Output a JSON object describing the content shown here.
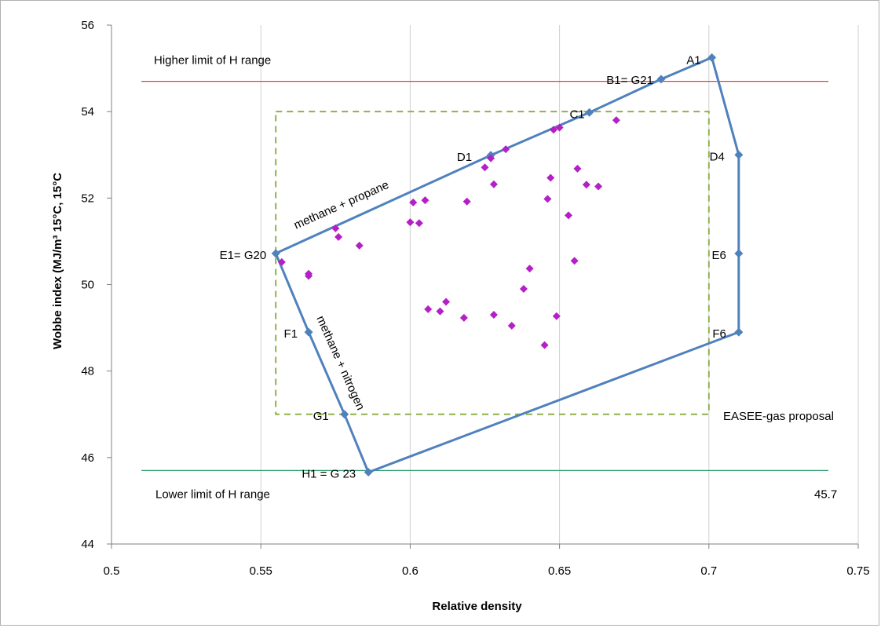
{
  "chart_data": {
    "type": "scatter",
    "title": "",
    "xlabel": "Relative density",
    "ylabel": "Wobbe index (MJ/m³ 15°C, 15°C",
    "xlim": [
      0.5,
      0.75
    ],
    "ylim": [
      44,
      56
    ],
    "x_ticks": [
      "0.5",
      "0.55",
      "0.6",
      "0.65",
      "0.7",
      "0.75"
    ],
    "y_ticks": [
      "44",
      "46",
      "48",
      "50",
      "52",
      "54",
      "56"
    ],
    "grid": "vertical",
    "colors": {
      "polygon": "#4f81bd",
      "points": "#b41fc7",
      "upper_limit": "#e0403a",
      "lower_limit": "#2e9e6e",
      "easee_box": "#8fb04a"
    },
    "reference_lines": [
      {
        "label": "Higher limit of H range",
        "y": 54.7,
        "x_range": [
          0.51,
          0.74
        ]
      },
      {
        "label": "Lower limit of H range",
        "value_label": "45.7",
        "y": 45.7,
        "x_range": [
          0.51,
          0.74
        ]
      }
    ],
    "easee_box": {
      "label": "EASEE-gas proposal",
      "x_range": [
        0.555,
        0.7
      ],
      "y_range": [
        47,
        54
      ]
    },
    "polygon_vertices": [
      {
        "label": "A1",
        "x": 0.701,
        "y": 55.25
      },
      {
        "label": "B1= G21",
        "x": 0.684,
        "y": 54.75
      },
      {
        "label": "C1",
        "x": 0.66,
        "y": 53.98
      },
      {
        "label": "D1",
        "x": 0.627,
        "y": 52.99
      },
      {
        "label": "E1= G20",
        "x": 0.555,
        "y": 50.72
      },
      {
        "label": "F1",
        "x": 0.566,
        "y": 48.9
      },
      {
        "label": "G1",
        "x": 0.578,
        "y": 47.0
      },
      {
        "label": "H1 = G 23",
        "x": 0.586,
        "y": 45.66
      },
      {
        "label": "F6",
        "x": 0.71,
        "y": 48.9
      },
      {
        "label": "E6",
        "x": 0.71,
        "y": 50.72
      },
      {
        "label": "D4",
        "x": 0.71,
        "y": 53.0
      }
    ],
    "edge_labels": [
      "methane +  propane",
      "methane + nitrogen"
    ],
    "gas_samples": [
      {
        "x": 0.557,
        "y": 50.52
      },
      {
        "x": 0.566,
        "y": 50.25
      },
      {
        "x": 0.566,
        "y": 50.2
      },
      {
        "x": 0.575,
        "y": 51.3
      },
      {
        "x": 0.576,
        "y": 51.1
      },
      {
        "x": 0.583,
        "y": 50.9
      },
      {
        "x": 0.6,
        "y": 51.44
      },
      {
        "x": 0.601,
        "y": 51.9
      },
      {
        "x": 0.603,
        "y": 51.42
      },
      {
        "x": 0.605,
        "y": 51.95
      },
      {
        "x": 0.606,
        "y": 49.43
      },
      {
        "x": 0.61,
        "y": 49.38
      },
      {
        "x": 0.612,
        "y": 49.6
      },
      {
        "x": 0.618,
        "y": 49.23
      },
      {
        "x": 0.619,
        "y": 51.92
      },
      {
        "x": 0.625,
        "y": 52.71
      },
      {
        "x": 0.627,
        "y": 52.92
      },
      {
        "x": 0.628,
        "y": 49.3
      },
      {
        "x": 0.628,
        "y": 52.32
      },
      {
        "x": 0.632,
        "y": 53.13
      },
      {
        "x": 0.634,
        "y": 49.05
      },
      {
        "x": 0.638,
        "y": 49.9
      },
      {
        "x": 0.64,
        "y": 50.37
      },
      {
        "x": 0.645,
        "y": 48.6
      },
      {
        "x": 0.646,
        "y": 51.98
      },
      {
        "x": 0.647,
        "y": 52.47
      },
      {
        "x": 0.648,
        "y": 53.58
      },
      {
        "x": 0.65,
        "y": 53.63
      },
      {
        "x": 0.649,
        "y": 49.27
      },
      {
        "x": 0.653,
        "y": 51.6
      },
      {
        "x": 0.655,
        "y": 50.55
      },
      {
        "x": 0.656,
        "y": 52.68
      },
      {
        "x": 0.659,
        "y": 52.31
      },
      {
        "x": 0.663,
        "y": 52.27
      },
      {
        "x": 0.669,
        "y": 53.8
      }
    ]
  }
}
